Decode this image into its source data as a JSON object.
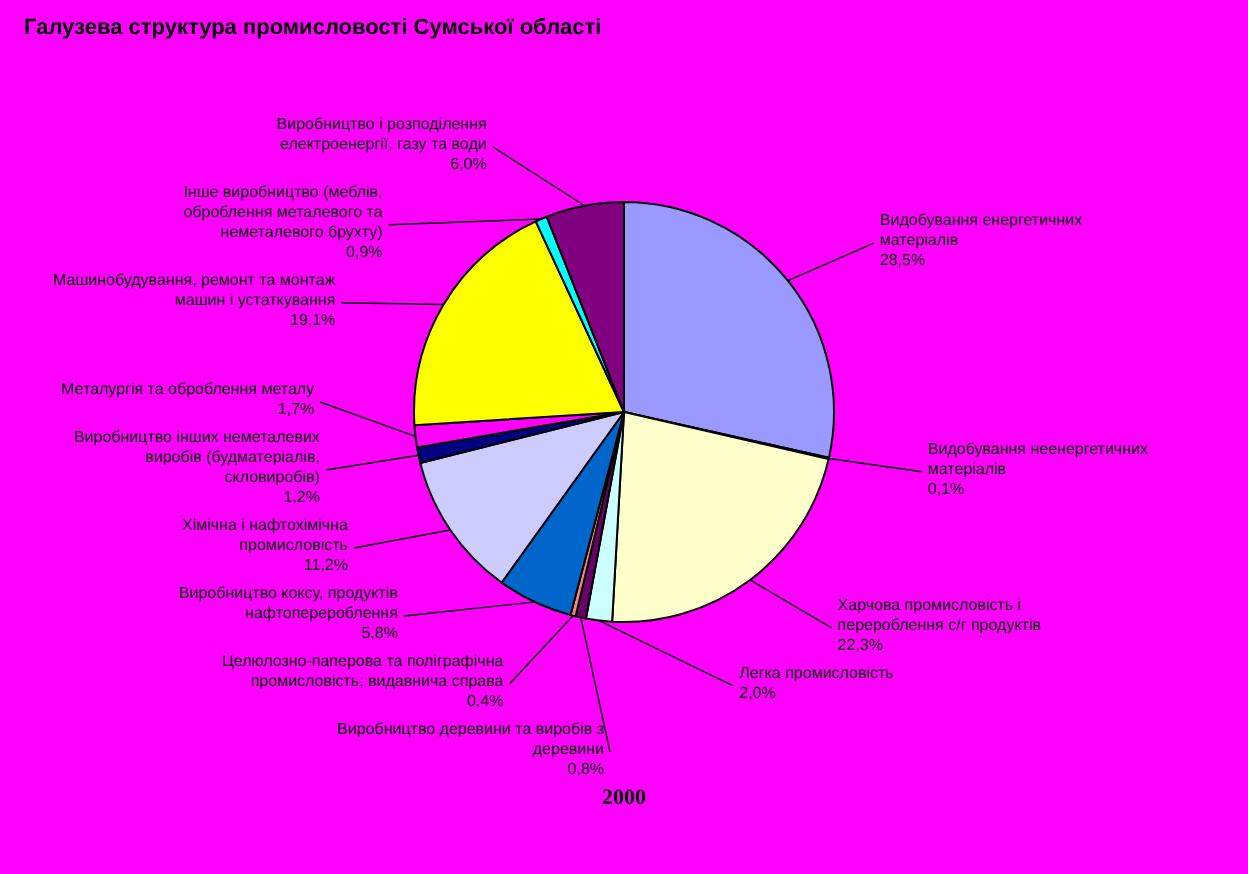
{
  "chart_data": {
    "type": "pie",
    "title": "Галузева структура промисловості Сумської області",
    "annotations": [
      "2000"
    ],
    "categories": [
      "Видобування енергетичних матеріалів",
      "Видобування неенергетичних матеріалів",
      "Харчова промисловість і перероблення с/г продуктів",
      "Легка промисловість",
      "Виробництво деревини та виробів з деревини",
      "Целюлозно-паперова та поліграфічна промисловість; видавнича справа",
      "Виробництво коксу, продуктів нафтоперероблення",
      "Хімічна і нафтохімічна промисловість",
      "Виробництво інших неметалевих виробів (будматеріалів, скловиробів)",
      "Металургія та оброблення металу",
      "Машинобудування, ремонт та монтаж машин і устаткування",
      "Інше виробництво (меблів, оброблення металевого та неметалевого брухту)",
      "Виробництво і розподілення електроенергії, газу та води"
    ],
    "values": [
      28.5,
      0.1,
      22.3,
      2.0,
      0.8,
      0.4,
      5.8,
      11.2,
      1.2,
      1.7,
      19.1,
      0.9,
      6.0
    ],
    "value_labels": [
      "28,5%",
      "0,1%",
      "22,3%",
      "2,0%",
      "0,8%",
      "0,4%",
      "5,8%",
      "11,2%",
      "1,2%",
      "1,7%",
      "19,1%",
      "0,9%",
      "6,0%"
    ],
    "colors": [
      "#9999ff",
      "#993366",
      "#ffffcc",
      "#ccffff",
      "#660066",
      "#ff8080",
      "#0066cc",
      "#ccccff",
      "#000080",
      "#ff00ff",
      "#ffff00",
      "#00ffff",
      "#800080"
    ],
    "legend": false
  }
}
